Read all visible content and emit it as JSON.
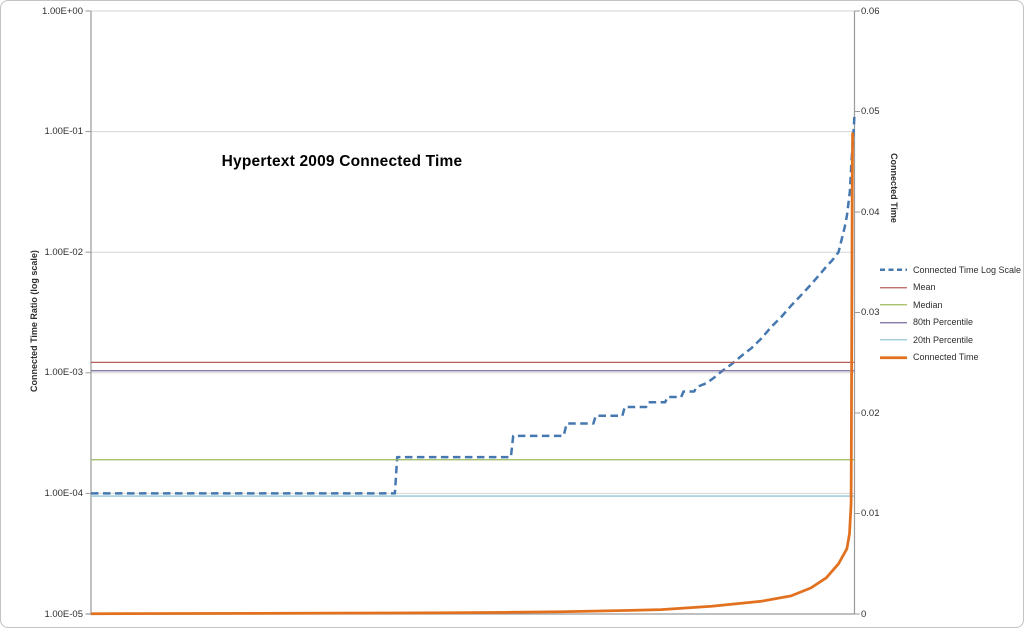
{
  "title": "Hypertext 2009 Connected Time",
  "left_axis": {
    "title": "Connected Time Ratio (log scale)",
    "labels": [
      "1.00E+00",
      "1.00E-01",
      "1.00E-02",
      "1.00E-03",
      "1.00E-04",
      "1.00E-05"
    ],
    "scale": "log",
    "range": [
      1e-05,
      1
    ]
  },
  "right_axis": {
    "title": "Connected Time",
    "labels": [
      "0.06",
      "0.05",
      "0.04",
      "0.03",
      "0.02",
      "0.01",
      "0"
    ],
    "scale": "linear",
    "range": [
      0,
      0.06
    ]
  },
  "legend": {
    "items": [
      {
        "label": "Connected Time Log Scale",
        "color": "#4577b0",
        "style": "dashed-thick"
      },
      {
        "label": "Mean",
        "color": "#b5605c",
        "style": "thin"
      },
      {
        "label": "Median",
        "color": "#9cb95e",
        "style": "thin"
      },
      {
        "label": "80th Percentile",
        "color": "#7a6a9e",
        "style": "thin"
      },
      {
        "label": "20th Percentile",
        "color": "#92c6d4",
        "style": "thin"
      },
      {
        "label": "Connected Time",
        "color": "#e2711f",
        "style": "solid-thick"
      }
    ]
  },
  "colors": {
    "gridline": "#d6d6d6",
    "axis": "#9a9a9a",
    "tick": "#9a9a9a",
    "background": "#ffffff",
    "border": "#c3c3c3"
  },
  "chart_data": {
    "type": "line",
    "title": "Hypertext 2009 Connected Time",
    "xlabel": "",
    "left_ylabel": "Connected Time Ratio (log scale)",
    "right_ylabel": "Connected Time",
    "left_ylim": [
      1e-05,
      1
    ],
    "right_ylim": [
      0,
      0.06
    ],
    "grid": "horizontal-major",
    "legend_position": "right",
    "series": [
      {
        "name": "Connected Time Log Scale",
        "axis": "left",
        "style": "dashed",
        "color": "#4577b0",
        "width": 2.5,
        "points": [
          [
            0.0,
            0.0001
          ],
          [
            0.398,
            0.0001
          ],
          [
            0.401,
            0.0002
          ],
          [
            0.55,
            0.0002
          ],
          [
            0.553,
            0.0003
          ],
          [
            0.619,
            0.0003
          ],
          [
            0.623,
            0.00038
          ],
          [
            0.658,
            0.00038
          ],
          [
            0.661,
            0.00044
          ],
          [
            0.696,
            0.00044
          ],
          [
            0.699,
            0.00052
          ],
          [
            0.727,
            0.00052
          ],
          [
            0.73,
            0.00057
          ],
          [
            0.752,
            0.00057
          ],
          [
            0.755,
            0.00063
          ],
          [
            0.773,
            0.00063
          ],
          [
            0.776,
            0.0007
          ],
          [
            0.79,
            0.0007
          ],
          [
            0.793,
            0.00076
          ],
          [
            0.806,
            0.00082
          ],
          [
            0.816,
            0.00091
          ],
          [
            0.826,
            0.00103
          ],
          [
            0.839,
            0.00118
          ],
          [
            0.852,
            0.00138
          ],
          [
            0.865,
            0.0016
          ],
          [
            0.878,
            0.00193
          ],
          [
            0.891,
            0.0024
          ],
          [
            0.904,
            0.0029
          ],
          [
            0.917,
            0.0036
          ],
          [
            0.93,
            0.0044
          ],
          [
            0.943,
            0.0054
          ],
          [
            0.954,
            0.0065
          ],
          [
            0.963,
            0.0076
          ],
          [
            0.971,
            0.0086
          ],
          [
            0.979,
            0.01
          ],
          [
            0.983,
            0.0126
          ],
          [
            0.987,
            0.016
          ],
          [
            0.99,
            0.02
          ],
          [
            0.994,
            0.032
          ],
          [
            0.996,
            0.055
          ],
          [
            0.998,
            0.085
          ],
          [
            0.9995,
            0.12
          ],
          [
            1.0,
            0.14
          ]
        ]
      },
      {
        "name": "Mean",
        "axis": "left",
        "style": "hline",
        "color": "#b5605c",
        "width": 1.3,
        "value": 0.00122
      },
      {
        "name": "Median",
        "axis": "left",
        "style": "hline",
        "color": "#9cb95e",
        "width": 1.3,
        "value": 0.00019
      },
      {
        "name": "80th Percentile",
        "axis": "left",
        "style": "hline",
        "color": "#7a6a9e",
        "width": 1.3,
        "value": 0.00104
      },
      {
        "name": "20th Percentile",
        "axis": "left",
        "style": "hline",
        "color": "#92c6d4",
        "width": 1.3,
        "value": 9.5e-05
      },
      {
        "name": "Connected Time",
        "axis": "right",
        "style": "solid",
        "color": "#e2711f",
        "width": 2.75,
        "points": [
          [
            0.0,
            3e-05
          ],
          [
            0.131,
            5e-05
          ],
          [
            0.262,
            7e-05
          ],
          [
            0.393,
            0.0001
          ],
          [
            0.472,
            0.00013
          ],
          [
            0.55,
            0.00017
          ],
          [
            0.616,
            0.00022
          ],
          [
            0.682,
            0.00032
          ],
          [
            0.747,
            0.00044
          ],
          [
            0.813,
            0.00077
          ],
          [
            0.878,
            0.00127
          ],
          [
            0.917,
            0.0018
          ],
          [
            0.943,
            0.0026
          ],
          [
            0.963,
            0.0036
          ],
          [
            0.979,
            0.005
          ],
          [
            0.99,
            0.0065
          ],
          [
            0.9935,
            0.008
          ],
          [
            0.9955,
            0.011
          ],
          [
            0.996,
            0.018
          ],
          [
            0.9965,
            0.03
          ],
          [
            0.997,
            0.042
          ],
          [
            0.9975,
            0.0479
          ]
        ]
      }
    ]
  }
}
